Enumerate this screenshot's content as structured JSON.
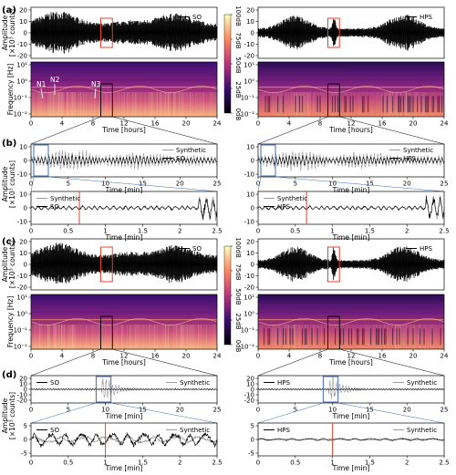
{
  "chart_data": {
    "type": "line",
    "panels": [
      {
        "label": "(a)"
      },
      {
        "label": "(b)"
      },
      {
        "label": "(c)"
      },
      {
        "label": "(d)"
      }
    ],
    "series_names": {
      "so": "SO",
      "hps": "HPS",
      "synthetic": "Synthetic"
    },
    "axis_labels": {
      "amplitude": "Amplitude",
      "amplitude_unit": "[×10³ counts]",
      "frequency": "Frequency [Hz]",
      "time_hours": "Time [hours]",
      "time_min": "Time [min]"
    },
    "colorbar": {
      "ticks": [
        "100dB",
        "75dB",
        "50dB",
        "25dB",
        "0dB"
      ]
    },
    "annotations": {
      "n1": "N1",
      "n2": "N2",
      "n3": "N3"
    },
    "x_ticks": {
      "hours": [
        0,
        4,
        8,
        12,
        16,
        20,
        24
      ],
      "minutes_b_upper": [
        0,
        5,
        10,
        15,
        20,
        25
      ],
      "minutes_b_lower": [
        0,
        0.5,
        1,
        1.5,
        2,
        2.5
      ],
      "minutes_d_upper": [
        0,
        5,
        10,
        15,
        20,
        25
      ],
      "minutes_d_lower": [
        0,
        0.5,
        1,
        1.5,
        2,
        2.5
      ]
    },
    "y_ticks": {
      "a_wave": [
        20,
        10,
        0,
        -10,
        -20
      ],
      "c_wave": [
        20,
        10,
        0,
        -10,
        -20
      ],
      "freq": [
        "10¹",
        "10⁰",
        "10⁻¹",
        "10⁻²"
      ],
      "b_upper": [
        10,
        0,
        -10
      ],
      "b_lower": [
        10,
        0,
        -10
      ],
      "d_upper": [
        20,
        10,
        0,
        -10,
        -20
      ],
      "d_lower": [
        5,
        0,
        -5
      ]
    },
    "xlim_hours": [
      0,
      24
    ],
    "xlim_min_upper": [
      0,
      25
    ],
    "xlim_min_lower": [
      0,
      2.5
    ],
    "highlight_window_hours": [
      9,
      10.5
    ],
    "event_marker_min": 0.65,
    "colors": {
      "so": "#000000",
      "hps": "#000000",
      "synthetic": "#9a9a9a",
      "window_red": "#e8402a",
      "window_blue": "#3a6db3",
      "spec_box": "#000000",
      "marker_red": "#e8402a"
    }
  }
}
